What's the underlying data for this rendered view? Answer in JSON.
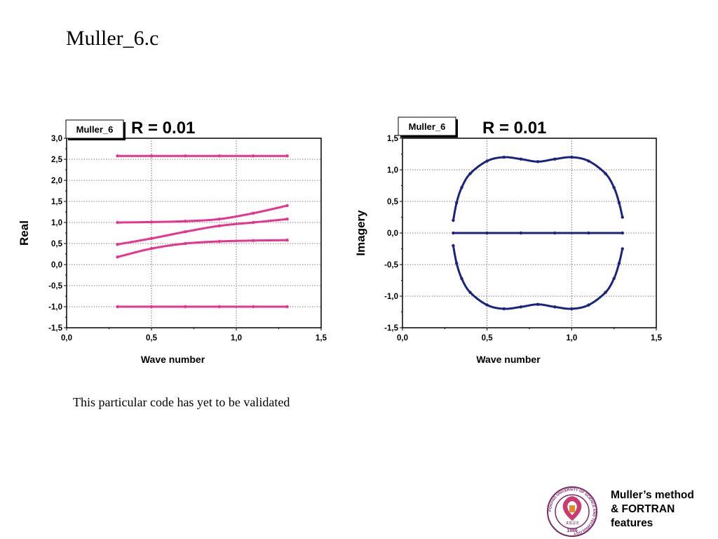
{
  "slide": {
    "title": "Muller_6.c",
    "caption": "This particular code has yet to be validated",
    "footer_line1": "Muller’s method",
    "footer_line2": "& FORTRAN",
    "footer_line3": "features",
    "logo": {
      "ring_text": "POHANG UNIVERSITY OF SCIENCE AND TECHNOLOGY",
      "year": "1986",
      "korean": "포항공대"
    }
  },
  "chart_data": [
    {
      "type": "scatter",
      "legend_box": "Muller_6",
      "title": "R = 0.01",
      "xlabel": "Wave number",
      "ylabel": "Real",
      "xlim": [
        0.0,
        1.5
      ],
      "ylim": [
        -1.5,
        3.0
      ],
      "xticks": [
        "0,0",
        "0,5",
        "1,0",
        "1,5"
      ],
      "yticks": [
        "3,0",
        "2,5",
        "2,0",
        "1,5",
        "1,0",
        "0,5",
        "0,0",
        "-0,5",
        "-1,0",
        "-1,5"
      ],
      "grid": true,
      "color": "#e6348f",
      "series": [
        {
          "x": [
            0.3,
            0.5,
            0.7,
            0.9,
            1.1,
            1.3
          ],
          "y": [
            2.58,
            2.58,
            2.58,
            2.58,
            2.58,
            2.58
          ]
        },
        {
          "x": [
            0.3,
            0.5,
            0.7,
            0.9,
            1.1,
            1.3
          ],
          "y": [
            1.0,
            1.01,
            1.03,
            1.08,
            1.22,
            1.4
          ]
        },
        {
          "x": [
            0.3,
            0.5,
            0.7,
            0.9,
            1.1,
            1.3
          ],
          "y": [
            0.48,
            0.62,
            0.78,
            0.92,
            1.0,
            1.08
          ]
        },
        {
          "x": [
            0.3,
            0.5,
            0.7,
            0.9,
            1.1,
            1.3
          ],
          "y": [
            0.18,
            0.38,
            0.5,
            0.55,
            0.57,
            0.58
          ]
        },
        {
          "x": [
            0.3,
            0.5,
            0.7,
            0.9,
            1.1,
            1.3
          ],
          "y": [
            -1.0,
            -1.0,
            -1.0,
            -1.0,
            -1.0,
            -1.0
          ]
        }
      ]
    },
    {
      "type": "scatter",
      "legend_box": "Muller_6",
      "title": "R = 0.01",
      "xlabel": "Wave number",
      "ylabel": "Imagery",
      "xlim": [
        0.0,
        1.5
      ],
      "ylim": [
        -1.5,
        1.5
      ],
      "xticks": [
        "0,0",
        "0,5",
        "1,0",
        "1,5"
      ],
      "yticks": [
        "1,5",
        "1,0",
        "0,5",
        "0,0",
        "-0,5",
        "-1,0",
        "-1,5"
      ],
      "grid": true,
      "color": "#1a237e",
      "series": [
        {
          "x": [
            0.3,
            0.32,
            0.35,
            0.4,
            0.5,
            0.6,
            0.7,
            0.8,
            0.9,
            1.0,
            1.1,
            1.2,
            1.25,
            1.28,
            1.3
          ],
          "y": [
            0.2,
            0.48,
            0.72,
            0.94,
            1.14,
            1.2,
            1.17,
            1.13,
            1.17,
            1.2,
            1.14,
            0.94,
            0.72,
            0.48,
            0.25
          ]
        },
        {
          "x": [
            0.3,
            0.5,
            0.7,
            0.9,
            1.1,
            1.3
          ],
          "y": [
            0.0,
            0.0,
            0.0,
            0.0,
            0.0,
            0.0
          ]
        },
        {
          "x": [
            0.3,
            0.32,
            0.35,
            0.4,
            0.5,
            0.6,
            0.7,
            0.8,
            0.9,
            1.0,
            1.1,
            1.2,
            1.25,
            1.28,
            1.3
          ],
          "y": [
            -0.2,
            -0.48,
            -0.72,
            -0.94,
            -1.14,
            -1.2,
            -1.17,
            -1.13,
            -1.17,
            -1.2,
            -1.14,
            -0.94,
            -0.72,
            -0.48,
            -0.25
          ]
        }
      ]
    }
  ]
}
